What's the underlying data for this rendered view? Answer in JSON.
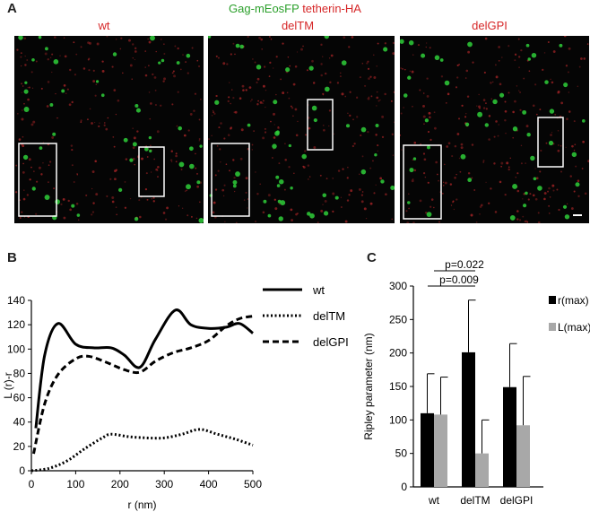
{
  "panel_a": {
    "letter": "A",
    "header_green": "Gag-mEosFP",
    "header_red": "tetherin-HA",
    "conditions": [
      "wt",
      "delTM",
      "delGPI"
    ]
  },
  "panel_b": {
    "letter": "B"
  },
  "panel_c": {
    "letter": "C"
  },
  "chart_data": [
    {
      "type": "line",
      "xlabel": "r (nm)",
      "ylabel": "L (r)-r",
      "xlim": [
        0,
        500
      ],
      "ylim": [
        0,
        140
      ],
      "xticks": [
        "0",
        "100",
        "200",
        "300",
        "400",
        "500"
      ],
      "yticks": [
        "0",
        "20",
        "40",
        "60",
        "80",
        "100",
        "120",
        "140"
      ],
      "series": [
        {
          "name": "wt",
          "style": "solid",
          "x": [
            10,
            30,
            60,
            100,
            140,
            180,
            210,
            245,
            280,
            325,
            360,
            400,
            440,
            470,
            500
          ],
          "y": [
            35,
            95,
            121,
            104,
            101,
            101,
            95,
            85,
            108,
            132,
            120,
            117,
            118,
            121,
            113
          ]
        },
        {
          "name": "delTM",
          "style": "dotted",
          "x": [
            0,
            40,
            80,
            120,
            160,
            180,
            220,
            260,
            300,
            340,
            380,
            420,
            460,
            500
          ],
          "y": [
            0,
            2,
            8,
            18,
            27,
            30,
            28,
            27,
            27,
            30,
            34,
            30,
            26,
            21
          ]
        },
        {
          "name": "delGPI",
          "style": "dashed",
          "x": [
            5,
            30,
            60,
            100,
            130,
            170,
            210,
            245,
            280,
            320,
            360,
            400,
            440,
            470,
            500
          ],
          "y": [
            14,
            55,
            79,
            92,
            94,
            89,
            83,
            81,
            90,
            97,
            101,
            107,
            119,
            125,
            127
          ]
        }
      ]
    },
    {
      "type": "bar",
      "ylabel": "Ripley parameter (nm)",
      "ylim": [
        0,
        300
      ],
      "yticks": [
        "0",
        "50",
        "100",
        "150",
        "200",
        "250",
        "300"
      ],
      "categories": [
        "wt",
        "delTM",
        "delGPI"
      ],
      "series": [
        {
          "name": "r(max)",
          "color": "#000000",
          "values": [
            110,
            201,
            149
          ],
          "errors": [
            59,
            78,
            65
          ]
        },
        {
          "name": "L(max)",
          "color": "#a8a8a8",
          "values": [
            108,
            50,
            92
          ],
          "errors": [
            56,
            50,
            73
          ]
        }
      ],
      "annotations": [
        "p=0.022",
        "p=0.009"
      ]
    }
  ]
}
